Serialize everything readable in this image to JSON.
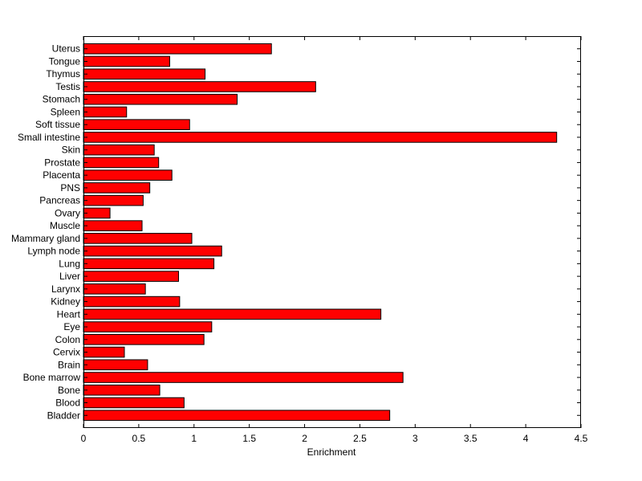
{
  "chart_data": {
    "type": "bar",
    "orientation": "horizontal",
    "title": "",
    "xlabel": "Enrichment",
    "ylabel": "",
    "xlim": [
      0,
      4.5
    ],
    "xticks": [
      "0",
      "0.5",
      "1",
      "1.5",
      "2",
      "2.5",
      "3",
      "3.5",
      "4",
      "4.5"
    ],
    "grid": false,
    "bar_color": "#ff0000",
    "categories": [
      "Uterus",
      "Tongue",
      "Thymus",
      "Testis",
      "Stomach",
      "Spleen",
      "Soft tissue",
      "Small intestine",
      "Skin",
      "Prostate",
      "Placenta",
      "PNS",
      "Pancreas",
      "Ovary",
      "Muscle",
      "Mammary gland",
      "Lymph node",
      "Lung",
      "Liver",
      "Larynx",
      "Kidney",
      "Heart",
      "Eye",
      "Colon",
      "Cervix",
      "Brain",
      "Bone marrow",
      "Bone",
      "Blood",
      "Bladder"
    ],
    "values": [
      1.7,
      0.78,
      1.1,
      2.1,
      1.39,
      0.39,
      0.96,
      4.28,
      0.64,
      0.68,
      0.8,
      0.6,
      0.54,
      0.24,
      0.53,
      0.98,
      1.25,
      1.18,
      0.86,
      0.56,
      0.87,
      2.69,
      1.16,
      1.09,
      0.37,
      0.58,
      2.89,
      0.69,
      0.91,
      2.77
    ]
  }
}
